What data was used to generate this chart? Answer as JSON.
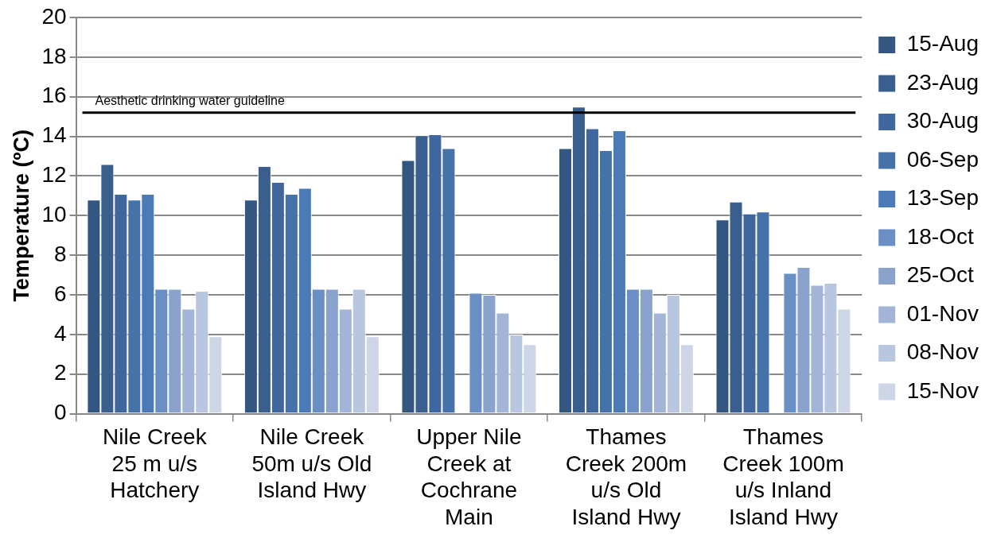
{
  "chart_data": {
    "type": "bar",
    "ylabel": "Temperature (ºC)",
    "categories": [
      "Nile Creek 25 m u/s Hatchery",
      "Nile Creek 50m u/s Old Island Hwy",
      "Upper Nile Creek at Cochrane Main",
      "Thames Creek 200m u/s Old Island Hwy",
      "Thames Creek 100m u/s Inland Island Hwy"
    ],
    "series": [
      {
        "name": "15-Aug",
        "color": "#335780",
        "values": [
          10.8,
          10.8,
          12.8,
          13.4,
          9.8
        ]
      },
      {
        "name": "23-Aug",
        "color": "#3a5f8f",
        "values": [
          12.6,
          12.5,
          14.05,
          15.5,
          10.7
        ]
      },
      {
        "name": "30-Aug",
        "color": "#3f679e",
        "values": [
          11.1,
          11.7,
          14.1,
          14.4,
          10.1
        ]
      },
      {
        "name": "06-Sep",
        "color": "#4572a8",
        "values": [
          10.8,
          11.1,
          13.4,
          13.3,
          10.2
        ]
      },
      {
        "name": "13-Sep",
        "color": "#4a7bb7",
        "values": [
          11.1,
          11.4,
          null,
          14.3,
          null
        ]
      },
      {
        "name": "18-Oct",
        "color": "#6a8fc4",
        "values": [
          6.3,
          6.3,
          6.1,
          6.3,
          7.1
        ]
      },
      {
        "name": "25-Oct",
        "color": "#8aa3cc",
        "values": [
          6.3,
          6.3,
          6.0,
          6.3,
          7.4
        ]
      },
      {
        "name": "01-Nov",
        "color": "#a3b5d6",
        "values": [
          5.3,
          5.3,
          5.1,
          5.1,
          6.5
        ]
      },
      {
        "name": "08-Nov",
        "color": "#b9c6e0",
        "values": [
          6.2,
          6.3,
          4.0,
          6.0,
          6.6
        ]
      },
      {
        "name": "15-Nov",
        "color": "#ccd6e7",
        "values": [
          3.9,
          3.9,
          3.5,
          3.5,
          5.3
        ]
      }
    ],
    "ylim": [
      0,
      20
    ],
    "yticks": [
      0,
      2,
      4,
      6,
      8,
      10,
      12,
      14,
      16,
      18,
      20
    ],
    "ref_lines": [
      {
        "axis": "y",
        "value": 15.2,
        "label": "Aesthetic drinking water guideline",
        "color": "#000000"
      }
    ],
    "grid": "y",
    "legend": "right"
  }
}
